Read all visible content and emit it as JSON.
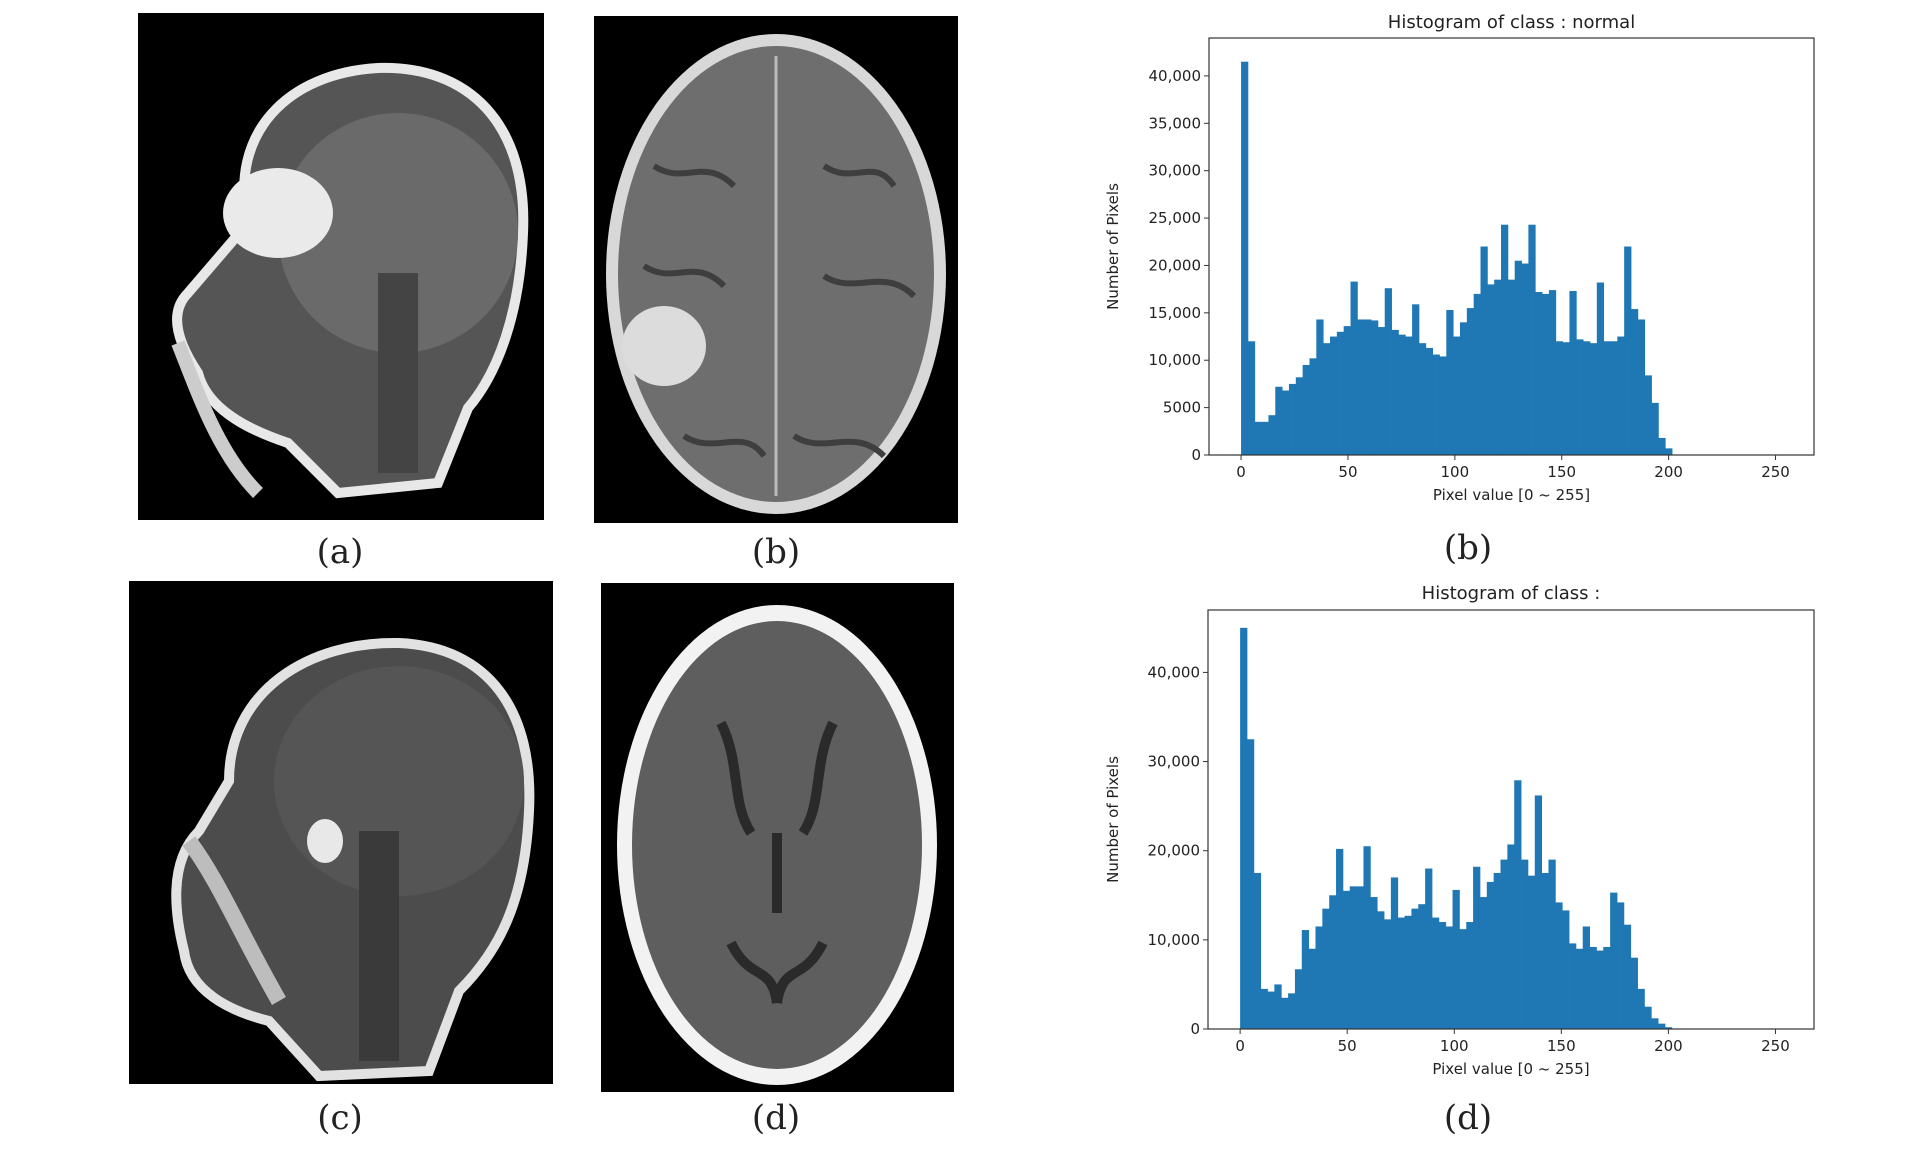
{
  "captions": {
    "a": "(a)",
    "b_image": "(b)",
    "c": "(c)",
    "d_image": "(d)",
    "b_chart": "(b)",
    "d_chart": "(d)"
  },
  "colors": {
    "bar": "#1f77b4",
    "axis": "#333333",
    "background": "#ffffff"
  },
  "chart_data": [
    {
      "type": "bar",
      "title": "Histogram of class : normal",
      "xlabel": "Pixel value [0 ~ 255]",
      "ylabel": "Number of Pixels",
      "xlim": [
        -15,
        268
      ],
      "ylim": [
        0,
        44000
      ],
      "xticks": [
        0,
        50,
        100,
        150,
        200,
        250
      ],
      "yticks": [
        0,
        5000,
        10000,
        15000,
        20000,
        25000,
        30000,
        35000,
        40000
      ],
      "ytick_labels": [
        "0",
        "5000",
        "10,000",
        "15,000",
        "20,000",
        "25,000",
        "30,000",
        "35,000",
        "40,000"
      ],
      "bin_width": 3.2,
      "bin_start": 0,
      "values": [
        41500,
        12000,
        3500,
        3500,
        4200,
        7200,
        6800,
        7500,
        8200,
        9500,
        10200,
        14300,
        11800,
        12500,
        13000,
        13600,
        18300,
        14300,
        14300,
        14200,
        13500,
        17600,
        13200,
        12700,
        12500,
        15900,
        11800,
        11300,
        10600,
        10400,
        15300,
        12500,
        14000,
        15500,
        17000,
        22000,
        18000,
        18500,
        24300,
        18500,
        20500,
        20200,
        24300,
        17200,
        17000,
        17400,
        12000,
        11900,
        17300,
        12200,
        12000,
        11800,
        18200,
        12000,
        12000,
        12500,
        22000,
        15400,
        14300,
        8400,
        5500,
        1800,
        700
      ]
    },
    {
      "type": "bar",
      "title": "Histogram of class :",
      "xlabel": "Pixel value [0 ~ 255]",
      "ylabel": "Number of Pixels",
      "xlim": [
        -15,
        268
      ],
      "ylim": [
        0,
        47000
      ],
      "xticks": [
        0,
        50,
        100,
        150,
        200,
        250
      ],
      "yticks": [
        0,
        10000,
        20000,
        30000,
        40000
      ],
      "ytick_labels": [
        "0",
        "10,000",
        "20,000",
        "30,000",
        "40,000"
      ],
      "bin_width": 3.2,
      "bin_start": 0,
      "values": [
        45000,
        32500,
        17500,
        4500,
        4200,
        5000,
        3500,
        4000,
        6700,
        11100,
        9000,
        11500,
        13500,
        15000,
        20200,
        15500,
        16000,
        16000,
        20500,
        14800,
        13200,
        12300,
        17000,
        12500,
        12700,
        13500,
        14000,
        18000,
        12500,
        12000,
        11500,
        15600,
        11200,
        12000,
        18200,
        14800,
        16500,
        17500,
        19000,
        20700,
        27900,
        19000,
        17200,
        26200,
        17500,
        19000,
        14200,
        13300,
        9600,
        9000,
        11500,
        9200,
        8800,
        9200,
        15300,
        14200,
        11700,
        8000,
        4500,
        2500,
        1200,
        600,
        200
      ]
    }
  ]
}
